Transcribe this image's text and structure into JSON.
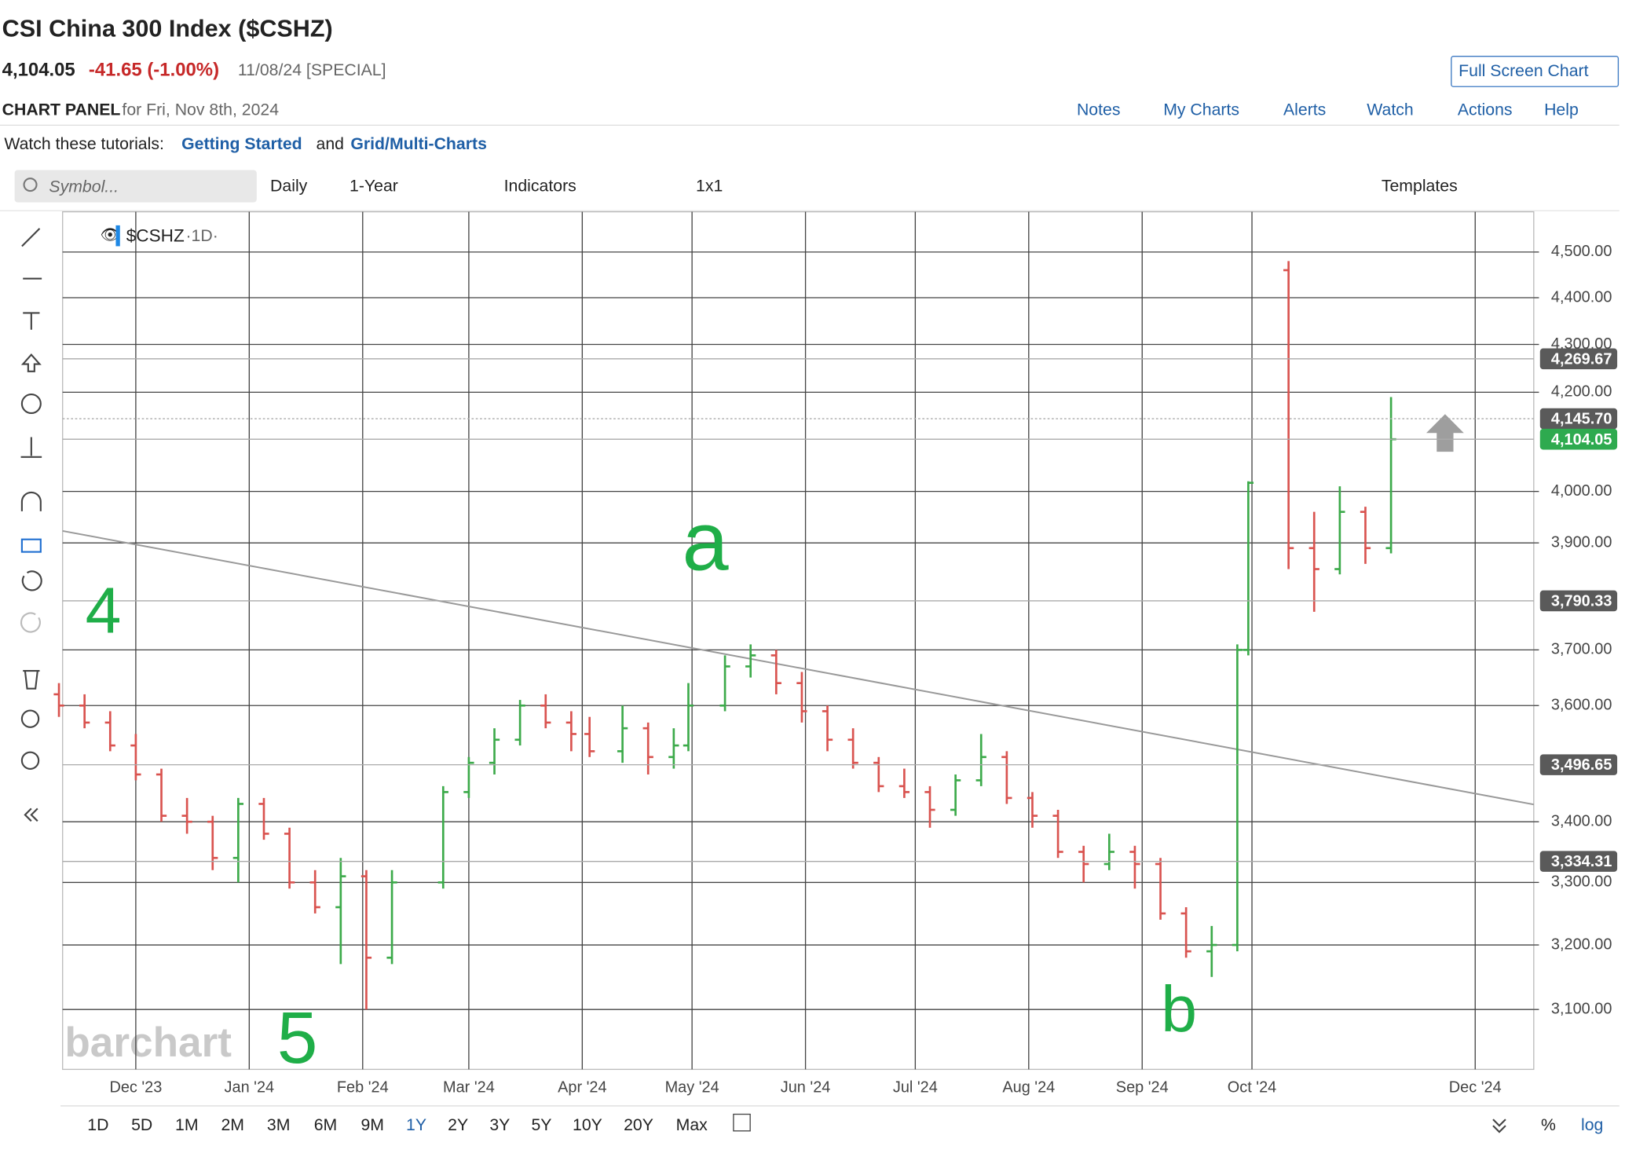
{
  "header": {
    "title": "CSI China 300 Index ($CSHZ)",
    "last": "4,104.05",
    "change": "-41.65 (-1.00%)",
    "date": "11/08/24 [SPECIAL]",
    "full_screen": "Full Screen Chart",
    "panel": "CHART PANEL",
    "panel_date": "for Fri, Nov 8th, 2024",
    "menu": [
      "Notes",
      "My Charts",
      "Alerts",
      "Watch",
      "Actions",
      "Help"
    ]
  },
  "tutorials": {
    "prefix": "Watch these tutorials:",
    "link1": "Getting Started",
    "and": "and",
    "link2": "Grid/Multi-Charts"
  },
  "toolbar": {
    "search": "Symbol...",
    "items": [
      "Daily",
      "1-Year",
      "Indicators",
      "1x1"
    ],
    "templates": "Templates"
  },
  "legend": {
    "symbol": "$CSHZ",
    "interval": "·1D·"
  },
  "periods": [
    "1D",
    "5D",
    "1M",
    "2M",
    "3M",
    "6M",
    "9M",
    "1Y",
    "2Y",
    "3Y",
    "5Y",
    "10Y",
    "20Y",
    "Max"
  ],
  "active_period_index": 7,
  "scale_buttons": [
    "%",
    "log"
  ],
  "watermark": "barchart",
  "chart_data": {
    "type": "ohlc",
    "log_scale": true,
    "grid": true,
    "up_color": "#3caa4a",
    "down_color": "#d9534f",
    "x": [
      "2023-11-10",
      "2023-11-17",
      "2023-11-24",
      "2023-12-01",
      "2023-12-08",
      "2023-12-15",
      "2023-12-22",
      "2023-12-29",
      "2024-01-05",
      "2024-01-12",
      "2024-01-19",
      "2024-01-26",
      "2024-02-02",
      "2024-02-09",
      "2024-02-23",
      "2024-03-01",
      "2024-03-08",
      "2024-03-15",
      "2024-03-22",
      "2024-03-29",
      "2024-04-03",
      "2024-04-12",
      "2024-04-19",
      "2024-04-26",
      "2024-04-30",
      "2024-05-10",
      "2024-05-17",
      "2024-05-24",
      "2024-05-31",
      "2024-06-07",
      "2024-06-14",
      "2024-06-21",
      "2024-06-28",
      "2024-07-05",
      "2024-07-12",
      "2024-07-19",
      "2024-07-26",
      "2024-08-02",
      "2024-08-09",
      "2024-08-16",
      "2024-08-23",
      "2024-08-30",
      "2024-09-06",
      "2024-09-13",
      "2024-09-20",
      "2024-09-27",
      "2024-09-30",
      "2024-10-11",
      "2024-10-18",
      "2024-10-25",
      "2024-11-01",
      "2024-11-08"
    ],
    "open": [
      3620,
      3600,
      3570,
      3530,
      3480,
      3410,
      3400,
      3340,
      3430,
      3380,
      3300,
      3260,
      3310,
      3180,
      3300,
      3450,
      3500,
      3540,
      3600,
      3570,
      3550,
      3520,
      3560,
      3510,
      3530,
      3600,
      3670,
      3690,
      3640,
      3590,
      3540,
      3500,
      3460,
      3450,
      3420,
      3470,
      3510,
      3440,
      3410,
      3350,
      3330,
      3350,
      3330,
      3250,
      3190,
      3200,
      3700,
      4460,
      3890,
      3850,
      3960,
      3890
    ],
    "high": [
      3640,
      3620,
      3590,
      3550,
      3490,
      3440,
      3410,
      3440,
      3440,
      3390,
      3320,
      3340,
      3320,
      3320,
      3460,
      3510,
      3560,
      3610,
      3620,
      3590,
      3580,
      3600,
      3570,
      3560,
      3640,
      3690,
      3710,
      3700,
      3660,
      3600,
      3560,
      3510,
      3490,
      3460,
      3480,
      3550,
      3520,
      3450,
      3420,
      3360,
      3380,
      3360,
      3340,
      3260,
      3230,
      3710,
      4020,
      4480,
      3960,
      4010,
      3970,
      4190
    ],
    "low": [
      3580,
      3560,
      3520,
      3470,
      3400,
      3380,
      3320,
      3300,
      3370,
      3290,
      3250,
      3170,
      3100,
      3170,
      3290,
      3440,
      3480,
      3530,
      3560,
      3520,
      3510,
      3500,
      3480,
      3490,
      3520,
      3590,
      3650,
      3620,
      3570,
      3520,
      3490,
      3450,
      3440,
      3390,
      3410,
      3460,
      3430,
      3390,
      3340,
      3300,
      3320,
      3290,
      3240,
      3180,
      3150,
      3190,
      3690,
      3850,
      3770,
      3840,
      3860,
      3880
    ],
    "close": [
      3600,
      3570,
      3530,
      3480,
      3410,
      3400,
      3340,
      3430,
      3380,
      3300,
      3260,
      3310,
      3180,
      3300,
      3450,
      3500,
      3540,
      3600,
      3570,
      3550,
      3520,
      3560,
      3510,
      3530,
      3600,
      3670,
      3690,
      3640,
      3590,
      3540,
      3500,
      3460,
      3450,
      3420,
      3470,
      3510,
      3440,
      3410,
      3350,
      3330,
      3350,
      3330,
      3250,
      3190,
      3200,
      3700,
      4017,
      3890,
      3850,
      3960,
      3890,
      4104.05
    ],
    "xlim": [
      "2023-11-11",
      "2024-12-17"
    ],
    "xticks": [
      {
        "value": "2023-12-01",
        "label": "Dec '23"
      },
      {
        "value": "2024-01-01",
        "label": "Jan '24"
      },
      {
        "value": "2024-02-01",
        "label": "Feb '24"
      },
      {
        "value": "2024-03-01",
        "label": "Mar '24"
      },
      {
        "value": "2024-04-01",
        "label": "Apr '24"
      },
      {
        "value": "2024-05-01",
        "label": "May '24"
      },
      {
        "value": "2024-06-01",
        "label": "Jun '24"
      },
      {
        "value": "2024-07-01",
        "label": "Jul '24"
      },
      {
        "value": "2024-08-01",
        "label": "Aug '24"
      },
      {
        "value": "2024-09-01",
        "label": "Sep '24"
      },
      {
        "value": "2024-10-01",
        "label": "Oct '24"
      },
      {
        "value": "2024-12-01",
        "label": "Dec '24"
      }
    ],
    "ylim": [
      3010,
      4590
    ],
    "yticks": [
      {
        "value": 3100,
        "label": "3,100.00"
      },
      {
        "value": 3200,
        "label": "3,200.00"
      },
      {
        "value": 3300,
        "label": "3,300.00"
      },
      {
        "value": 3400,
        "label": "3,400.00"
      },
      {
        "value": 3600,
        "label": "3,600.00"
      },
      {
        "value": 3700,
        "label": "3,700.00"
      },
      {
        "value": 3900,
        "label": "3,900.00"
      },
      {
        "value": 4000,
        "label": "4,000.00"
      },
      {
        "value": 4200,
        "label": "4,200.00"
      },
      {
        "value": 4300,
        "label": "4,300.00"
      },
      {
        "value": 4400,
        "label": "4,400.00"
      },
      {
        "value": 4500,
        "label": "4,500.00"
      }
    ],
    "price_lines": [
      {
        "value": 4269.67,
        "label": "4,269.67",
        "color": "#5a5a5a"
      },
      {
        "value": 4145.7,
        "label": "4,145.70",
        "color": "#5a5a5a"
      },
      {
        "value": 4104.05,
        "label": "4,104.05",
        "color": "#2eaa4f"
      },
      {
        "value": 3790.33,
        "label": "3,790.33",
        "color": "#5a5a5a"
      },
      {
        "value": 3496.65,
        "label": "3,496.65",
        "color": "#5a5a5a"
      },
      {
        "value": 3334.31,
        "label": "3,334.31",
        "color": "#5a5a5a"
      }
    ],
    "trendline": {
      "x": [
        "2023-11-11",
        "2024-12-17"
      ],
      "values": [
        3923,
        3429
      ],
      "color": "#999999"
    },
    "annotations": [
      "a",
      "b",
      "4",
      "5"
    ]
  }
}
